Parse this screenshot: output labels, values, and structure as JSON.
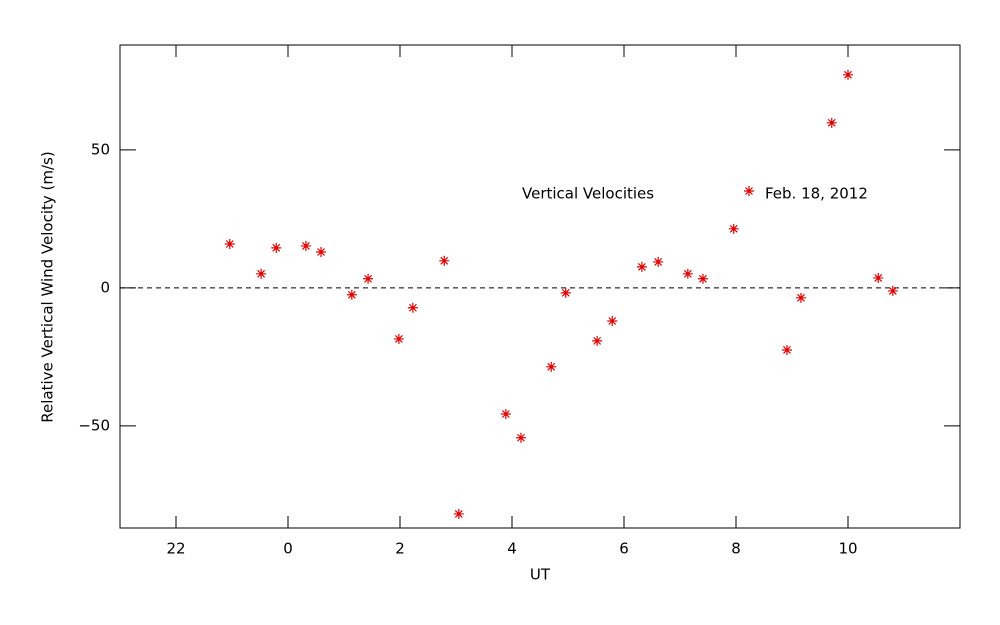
{
  "chart_data": {
    "type": "scatter",
    "xlabel": "UT",
    "ylabel": "Relative Vertical Wind Velocity (m/s)",
    "annotation": "Vertical Velocities",
    "legend": "upper right",
    "xlim": [
      -3,
      12
    ],
    "ylim": [
      -87,
      88
    ],
    "xticks": [
      {
        "value": -2,
        "label": "22"
      },
      0,
      2,
      4,
      6,
      8,
      10
    ],
    "yticks": [
      {
        "value": -50,
        "label": "−50"
      },
      0,
      50
    ],
    "reference_line": 0,
    "series": [
      {
        "name": "Feb. 18, 2012",
        "color": "#e00000",
        "x": [
          -1.04,
          -0.48,
          -0.21,
          0.32,
          0.59,
          1.14,
          1.43,
          1.98,
          2.23,
          2.79,
          3.05,
          3.89,
          4.16,
          4.7,
          4.96,
          5.52,
          5.79,
          6.32,
          6.61,
          7.14,
          7.41,
          7.96,
          8.91,
          9.16,
          9.71,
          10.0,
          10.54,
          10.8
        ],
        "values": [
          15.9,
          5.1,
          14.5,
          15.2,
          13.0,
          -2.5,
          3.3,
          -18.5,
          -7.2,
          9.8,
          -81.9,
          -45.7,
          -54.3,
          -28.6,
          -1.8,
          -19.2,
          -12.0,
          7.6,
          9.4,
          5.1,
          3.3,
          21.4,
          -22.5,
          -3.6,
          59.8,
          77.2,
          3.6,
          -1.1
        ]
      }
    ]
  }
}
